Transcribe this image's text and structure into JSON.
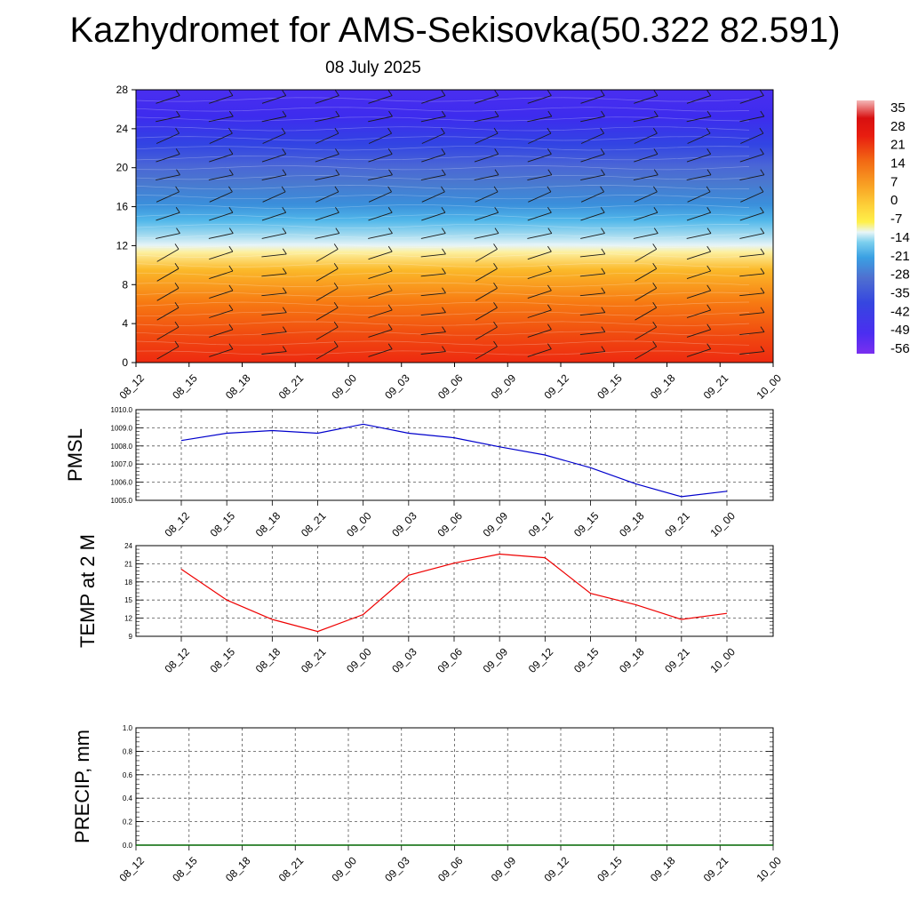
{
  "title": "Kazhydromet for AMS-Sekisovka(50.322 82.591)",
  "subtitle": "08 July 2025",
  "chart_data": [
    {
      "type": "heatmap",
      "title": "",
      "y_ticks": [
        "0",
        "4",
        "8",
        "12",
        "16",
        "20",
        "24",
        "28"
      ],
      "ylim": [
        0,
        28
      ],
      "x_ticks": [
        "08_12",
        "08_15",
        "08_18",
        "08_21",
        "09_00",
        "09_03",
        "09_06",
        "09_09",
        "09_12",
        "09_15",
        "09_18",
        "09_21",
        "10_00"
      ],
      "colorbar_labels": [
        "35",
        "28",
        "21",
        "14",
        "7",
        "0",
        "-7",
        "-14",
        "-21",
        "-28",
        "-35",
        "-42",
        "-49",
        "-56"
      ],
      "overlay": "wind barbs"
    },
    {
      "type": "line",
      "ylabel": "PMSL",
      "y_ticks": [
        "1010.0",
        "1009.0",
        "1008.0",
        "1007.0",
        "1006.0",
        "1005.0"
      ],
      "ylim": [
        1005.0,
        1010.0
      ],
      "x": [
        "08_12",
        "08_15",
        "08_18",
        "08_21",
        "09_00",
        "09_03",
        "09_06",
        "09_09",
        "09_12",
        "09_15",
        "09_18",
        "09_21",
        "10_00"
      ],
      "values": [
        1008.3,
        1008.7,
        1008.85,
        1008.7,
        1009.2,
        1008.7,
        1008.45,
        1007.95,
        1007.5,
        1006.8,
        1005.9,
        1005.2,
        1005.5
      ],
      "grid": true,
      "line_color": "#0000cc"
    },
    {
      "type": "line",
      "ylabel": "TEMP at 2 M",
      "y_ticks": [
        "24",
        "21",
        "18",
        "15",
        "12",
        "9"
      ],
      "ylim": [
        9,
        24
      ],
      "x": [
        "08_12",
        "08_15",
        "08_18",
        "08_21",
        "09_00",
        "09_03",
        "09_06",
        "09_09",
        "09_12",
        "09_15",
        "09_18",
        "09_21",
        "10_00"
      ],
      "values": [
        20.1,
        15.0,
        11.8,
        9.8,
        12.6,
        19.1,
        21.1,
        22.6,
        22.0,
        16.1,
        14.2,
        11.8,
        12.8
      ],
      "grid": true,
      "line_color": "#ee0000"
    },
    {
      "type": "line",
      "ylabel": "PRECIP, mm",
      "y_ticks": [
        "1.0",
        "0.8",
        "0.6",
        "0.4",
        "0.2",
        "0.0"
      ],
      "ylim": [
        0.0,
        1.0
      ],
      "x_ticks": [
        "08_12",
        "08_15",
        "08_18",
        "08_21",
        "09_00",
        "09_03",
        "09_06",
        "09_09",
        "09_12",
        "09_15",
        "09_18",
        "09_21",
        "10_00"
      ],
      "values": [
        0,
        0,
        0,
        0,
        0,
        0,
        0,
        0,
        0,
        0,
        0,
        0,
        0
      ],
      "grid": true,
      "line_color": "#006600"
    }
  ]
}
